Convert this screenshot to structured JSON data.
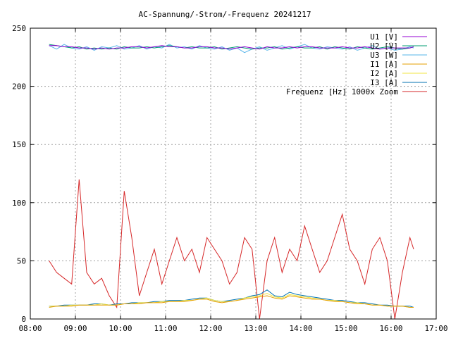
{
  "chart_data": {
    "type": "line",
    "title": "AC-Spannung/-Strom/-Frequenz 20241217",
    "xlabel": "",
    "ylabel": "",
    "xlim": [
      "08:00",
      "17:00"
    ],
    "ylim": [
      0,
      250
    ],
    "grid": true,
    "legend_position": "top-right",
    "x_tick_labels": [
      "08:00",
      "09:00",
      "10:00",
      "11:00",
      "12:00",
      "13:00",
      "14:00",
      "15:00",
      "16:00",
      "17:00"
    ],
    "y_tick_labels": [
      "0",
      "50",
      "100",
      "150",
      "200",
      "250"
    ],
    "x": [
      "08:25",
      "08:35",
      "08:45",
      "08:55",
      "09:05",
      "09:15",
      "09:25",
      "09:35",
      "09:45",
      "09:55",
      "10:05",
      "10:15",
      "10:25",
      "10:35",
      "10:45",
      "10:55",
      "11:05",
      "11:15",
      "11:25",
      "11:35",
      "11:45",
      "11:55",
      "12:05",
      "12:15",
      "12:25",
      "12:35",
      "12:45",
      "12:55",
      "13:05",
      "13:15",
      "13:25",
      "13:35",
      "13:45",
      "13:55",
      "14:05",
      "14:15",
      "14:25",
      "14:35",
      "14:45",
      "14:55",
      "15:05",
      "15:15",
      "15:25",
      "15:35",
      "15:45",
      "15:55",
      "16:05",
      "16:15",
      "16:25",
      "16:30"
    ],
    "series": [
      {
        "name": "U1 [V]",
        "color": "#9400d3",
        "values": [
          235,
          235,
          234,
          234,
          233,
          233,
          232,
          233,
          232,
          233,
          233,
          234,
          234,
          233,
          234,
          235,
          234,
          234,
          233,
          233,
          234,
          234,
          233,
          233,
          232,
          233,
          234,
          233,
          232,
          234,
          233,
          233,
          234,
          233,
          234,
          234,
          233,
          233,
          233,
          234,
          233,
          233,
          234,
          233,
          232,
          233,
          233,
          233,
          233,
          234
        ]
      },
      {
        "name": "U2 [V]",
        "color": "#009e73",
        "values": [
          236,
          235,
          234,
          233,
          234,
          232,
          233,
          232,
          233,
          232,
          234,
          233,
          233,
          234,
          233,
          234,
          235,
          234,
          233,
          234,
          233,
          233,
          234,
          232,
          233,
          234,
          233,
          232,
          233,
          233,
          234,
          232,
          233,
          234,
          233,
          233,
          234,
          232,
          234,
          233,
          232,
          234,
          233,
          232,
          233,
          234,
          233,
          232,
          233,
          234
        ]
      },
      {
        "name": "U3 [W]",
        "color": "#56b4e9",
        "values": [
          235,
          232,
          236,
          233,
          232,
          234,
          231,
          234,
          233,
          235,
          232,
          233,
          235,
          232,
          234,
          233,
          236,
          233,
          234,
          232,
          235,
          233,
          232,
          234,
          231,
          233,
          229,
          232,
          234,
          231,
          233,
          235,
          232,
          234,
          236,
          233,
          232,
          234,
          233,
          232,
          234,
          231,
          233,
          235,
          232,
          233,
          231,
          232,
          234,
          233
        ]
      },
      {
        "name": "I1 [A]",
        "color": "#e69f00",
        "values": [
          10,
          11,
          11,
          11,
          12,
          12,
          12,
          12,
          12,
          12,
          13,
          13,
          13,
          14,
          14,
          14,
          15,
          15,
          15,
          16,
          17,
          17,
          15,
          14,
          15,
          16,
          17,
          18,
          19,
          20,
          18,
          17,
          20,
          19,
          18,
          17,
          17,
          16,
          15,
          15,
          14,
          13,
          13,
          12,
          12,
          11,
          11,
          11,
          10,
          10
        ]
      },
      {
        "name": "I2 [A]",
        "color": "#f0e442",
        "values": [
          11,
          11,
          11,
          12,
          12,
          12,
          12,
          13,
          12,
          12,
          13,
          13,
          14,
          14,
          14,
          15,
          15,
          15,
          16,
          16,
          17,
          18,
          16,
          15,
          15,
          16,
          18,
          19,
          20,
          22,
          19,
          18,
          21,
          20,
          19,
          18,
          17,
          16,
          16,
          15,
          14,
          14,
          13,
          12,
          12,
          11,
          11,
          11,
          10,
          10
        ]
      },
      {
        "name": "I3 [A]",
        "color": "#0072b2",
        "values": [
          11,
          11,
          12,
          12,
          12,
          12,
          13,
          13,
          12,
          13,
          13,
          14,
          14,
          14,
          15,
          15,
          16,
          16,
          16,
          17,
          18,
          18,
          16,
          15,
          16,
          17,
          18,
          20,
          21,
          25,
          20,
          19,
          23,
          21,
          20,
          19,
          18,
          17,
          16,
          16,
          15,
          14,
          14,
          13,
          12,
          12,
          11,
          11,
          11,
          10
        ]
      },
      {
        "name": "Frequenz [Hz] 1000x Zoom",
        "color": "#d62728",
        "values": [
          50,
          40,
          35,
          30,
          120,
          40,
          30,
          35,
          20,
          10,
          110,
          70,
          20,
          40,
          60,
          30,
          50,
          70,
          50,
          60,
          40,
          70,
          60,
          50,
          30,
          40,
          70,
          60,
          0,
          50,
          70,
          40,
          60,
          50,
          80,
          60,
          40,
          50,
          70,
          90,
          60,
          50,
          30,
          60,
          70,
          50,
          0,
          40,
          70,
          60
        ]
      }
    ]
  }
}
